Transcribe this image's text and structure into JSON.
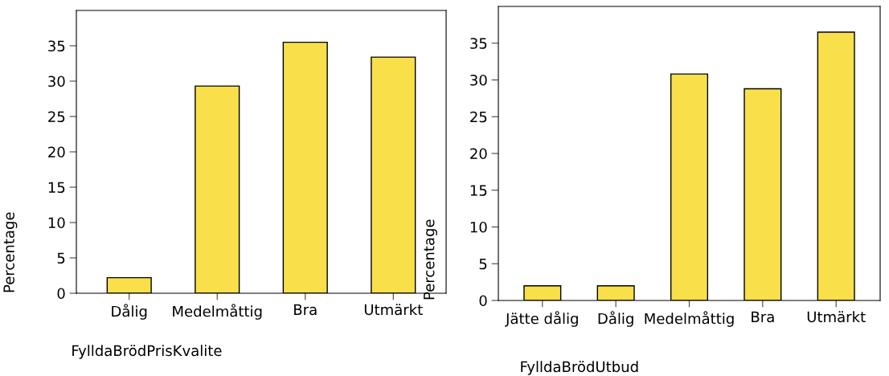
{
  "chart_data": [
    {
      "type": "bar",
      "xlabel": "FylldaBrödPrisKvalite",
      "ylabel": "Percentage",
      "categories": [
        "Dålig",
        "Medelmåttig",
        "Bra",
        "Utmärkt"
      ],
      "values": [
        2.2,
        29.3,
        35.5,
        33.4
      ],
      "color": "#f9e04b",
      "ylim": [
        0,
        40
      ],
      "yticks": [
        0,
        5,
        10,
        15,
        20,
        25,
        30,
        35
      ],
      "grid": false,
      "legend": false
    },
    {
      "type": "bar",
      "xlabel": "FylldaBrödUtbud",
      "ylabel": "Percentage",
      "categories": [
        "Jätte dålig",
        "Dålig",
        "Medelmåttig",
        "Bra",
        "Utmärkt"
      ],
      "values": [
        2.0,
        2.0,
        30.8,
        28.8,
        36.5
      ],
      "color": "#f9e04b",
      "ylim": [
        0,
        40
      ],
      "yticks": [
        0,
        5,
        10,
        15,
        20,
        25,
        30,
        35
      ],
      "grid": false,
      "legend": false
    }
  ]
}
